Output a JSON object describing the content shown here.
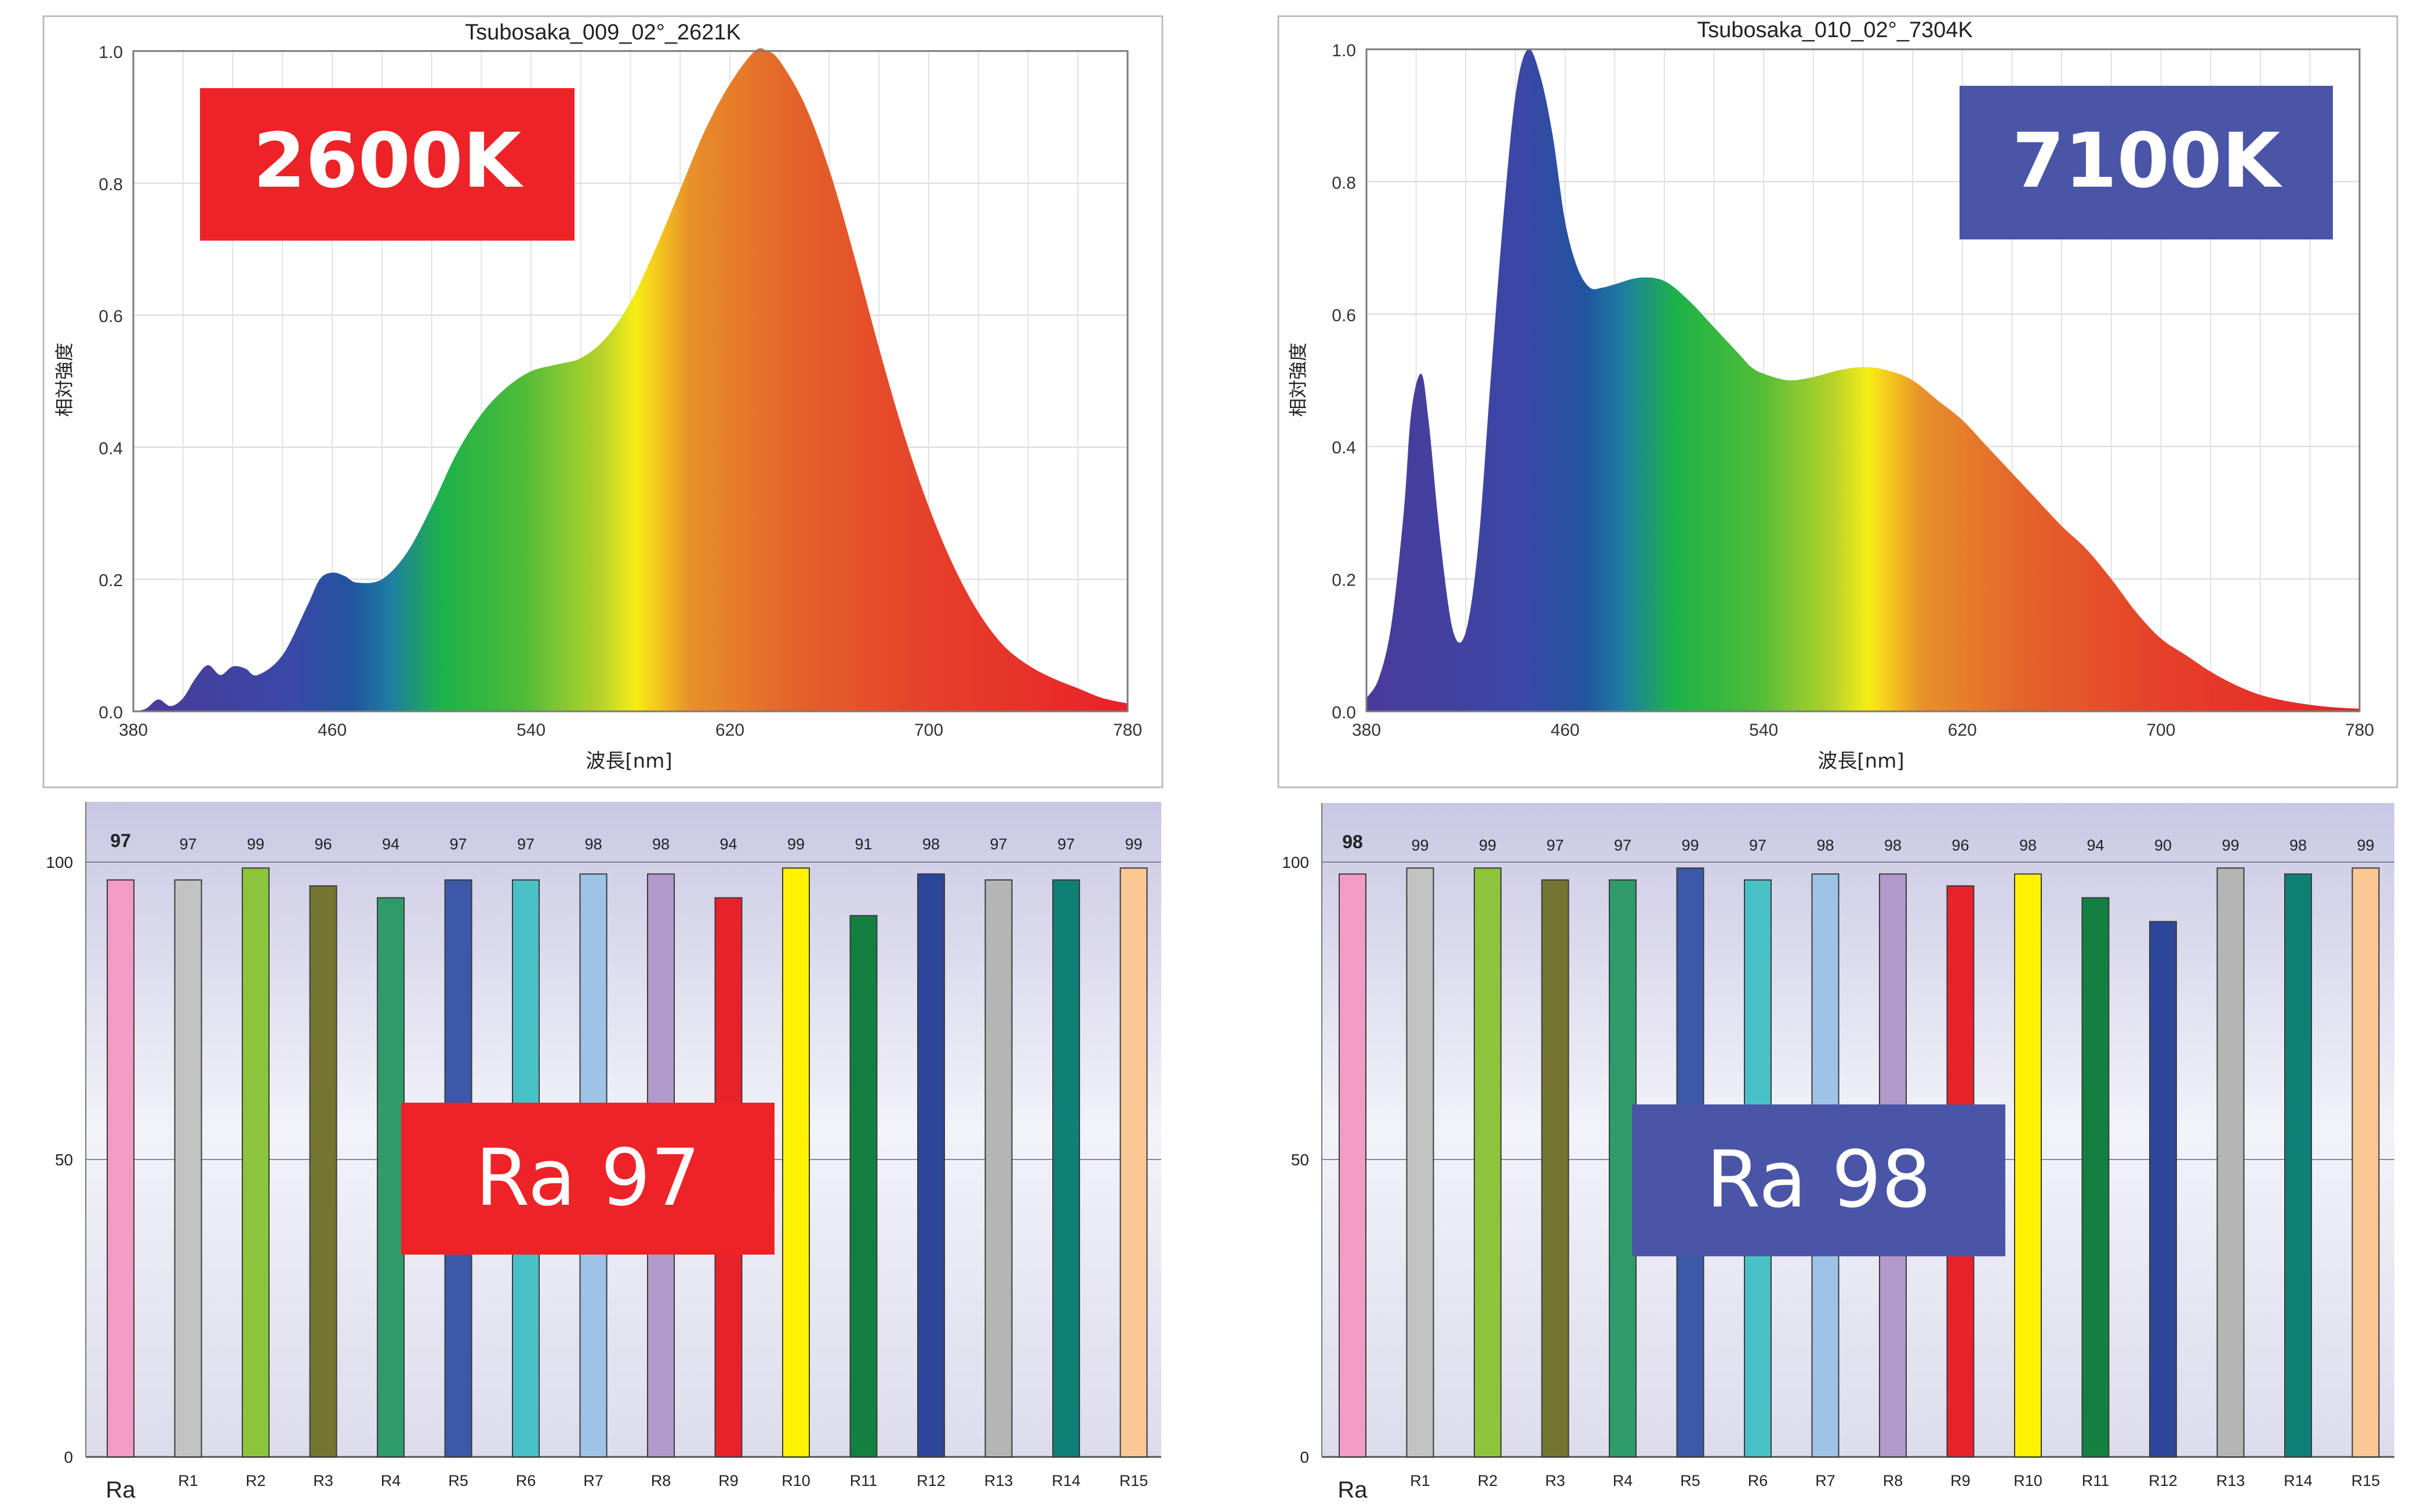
{
  "chart_data": [
    {
      "type": "area",
      "title": "Tsubosaka_009_02°_2621K",
      "xlabel": "波長[nm]",
      "ylabel": "相対強度",
      "xlim": [
        380,
        780
      ],
      "ylim": [
        0,
        1.0
      ],
      "x_ticks": [
        380,
        460,
        540,
        620,
        700,
        780
      ],
      "y_ticks": [
        "0.0",
        "0.2",
        "0.4",
        "0.6",
        "0.8",
        "1.0"
      ],
      "grid": true,
      "badge": "2600K",
      "badge_color": "#ee2328",
      "x": [
        380,
        385,
        390,
        395,
        400,
        405,
        410,
        415,
        420,
        425,
        430,
        440,
        450,
        455,
        460,
        465,
        470,
        480,
        490,
        500,
        510,
        520,
        530,
        540,
        550,
        560,
        570,
        580,
        590,
        600,
        610,
        620,
        630,
        635,
        640,
        650,
        660,
        670,
        680,
        690,
        700,
        710,
        720,
        730,
        740,
        750,
        760,
        770,
        780
      ],
      "y": [
        0.0,
        0.004,
        0.018,
        0.008,
        0.02,
        0.05,
        0.07,
        0.055,
        0.068,
        0.065,
        0.055,
        0.085,
        0.16,
        0.2,
        0.21,
        0.205,
        0.195,
        0.2,
        0.24,
        0.31,
        0.39,
        0.45,
        0.49,
        0.515,
        0.525,
        0.535,
        0.565,
        0.62,
        0.7,
        0.79,
        0.88,
        0.95,
        1.0,
        1.0,
        0.985,
        0.92,
        0.82,
        0.69,
        0.55,
        0.42,
        0.31,
        0.22,
        0.15,
        0.1,
        0.07,
        0.05,
        0.035,
        0.02,
        0.012
      ]
    },
    {
      "type": "area",
      "title": "Tsubosaka_010_02°_7304K",
      "xlabel": "波長[nm]",
      "ylabel": "相対強度",
      "xlim": [
        380,
        780
      ],
      "ylim": [
        0,
        1.0
      ],
      "x_ticks": [
        380,
        460,
        540,
        620,
        700,
        780
      ],
      "y_ticks": [
        "0.0",
        "0.2",
        "0.4",
        "0.6",
        "0.8",
        "1.0"
      ],
      "grid": true,
      "badge": "7100K",
      "badge_color": "#4a55a8",
      "x": [
        380,
        385,
        390,
        395,
        398,
        402,
        405,
        410,
        415,
        420,
        425,
        430,
        435,
        440,
        445,
        450,
        455,
        460,
        465,
        470,
        475,
        480,
        490,
        500,
        510,
        520,
        530,
        535,
        540,
        550,
        560,
        570,
        580,
        590,
        600,
        610,
        620,
        630,
        640,
        650,
        660,
        670,
        680,
        690,
        700,
        710,
        720,
        730,
        740,
        750,
        760,
        770,
        780
      ],
      "y": [
        0.02,
        0.05,
        0.13,
        0.3,
        0.45,
        0.51,
        0.44,
        0.25,
        0.12,
        0.12,
        0.25,
        0.5,
        0.74,
        0.93,
        1.0,
        0.96,
        0.87,
        0.74,
        0.67,
        0.64,
        0.64,
        0.645,
        0.655,
        0.65,
        0.62,
        0.58,
        0.54,
        0.52,
        0.51,
        0.5,
        0.505,
        0.515,
        0.52,
        0.515,
        0.5,
        0.47,
        0.44,
        0.4,
        0.36,
        0.32,
        0.28,
        0.245,
        0.2,
        0.15,
        0.11,
        0.085,
        0.06,
        0.04,
        0.025,
        0.016,
        0.01,
        0.006,
        0.004
      ]
    },
    {
      "type": "bar",
      "categories": [
        "Ra",
        "R1",
        "R2",
        "R3",
        "R4",
        "R5",
        "R6",
        "R7",
        "R8",
        "R9",
        "R10",
        "R11",
        "R12",
        "R13",
        "R14",
        "R15"
      ],
      "values": [
        97,
        97,
        99,
        96,
        94,
        97,
        97,
        98,
        98,
        94,
        99,
        91,
        98,
        97,
        97,
        99
      ],
      "value_labels": [
        "97",
        "97",
        "99",
        "96",
        "94",
        "97",
        "97",
        "98",
        "98",
        "94",
        "99",
        "91",
        "98",
        "97",
        "97",
        "99"
      ],
      "ylim": [
        0,
        110
      ],
      "y_ticks": [
        "0",
        "50",
        "100"
      ],
      "colors": [
        "#f29bc4",
        "#c3c3c3",
        "#8cc43c",
        "#757531",
        "#2f9b6a",
        "#3d58a8",
        "#47c1c6",
        "#9dc4e6",
        "#b299cb",
        "#e8222a",
        "#fff200",
        "#12813f",
        "#2c479a",
        "#b5b5b5",
        "#0e8075",
        "#fbc794"
      ],
      "badge": "Ra 97",
      "badge_color": "#ee2328"
    },
    {
      "type": "bar",
      "categories": [
        "Ra",
        "R1",
        "R2",
        "R3",
        "R4",
        "R5",
        "R6",
        "R7",
        "R8",
        "R9",
        "R10",
        "R11",
        "R12",
        "R13",
        "R14",
        "R15"
      ],
      "values": [
        98,
        99,
        99,
        97,
        97,
        99,
        97,
        98,
        98,
        96,
        98,
        94,
        90,
        99,
        98,
        99
      ],
      "value_labels": [
        "98",
        "99",
        "99",
        "97",
        "97",
        "99",
        "97",
        "98",
        "98",
        "96",
        "98",
        "94",
        "90",
        "99",
        "98",
        "99"
      ],
      "ylim": [
        0,
        110
      ],
      "y_ticks": [
        "0",
        "50",
        "100"
      ],
      "colors": [
        "#f29bc4",
        "#c3c3c3",
        "#8cc43c",
        "#757531",
        "#2f9b6a",
        "#3d58a8",
        "#47c1c6",
        "#9dc4e6",
        "#b299cb",
        "#e8222a",
        "#fff200",
        "#12813f",
        "#2c479a",
        "#b5b5b5",
        "#0e8075",
        "#fbc794"
      ],
      "badge": "Ra 98",
      "badge_color": "#4a55a8"
    }
  ]
}
